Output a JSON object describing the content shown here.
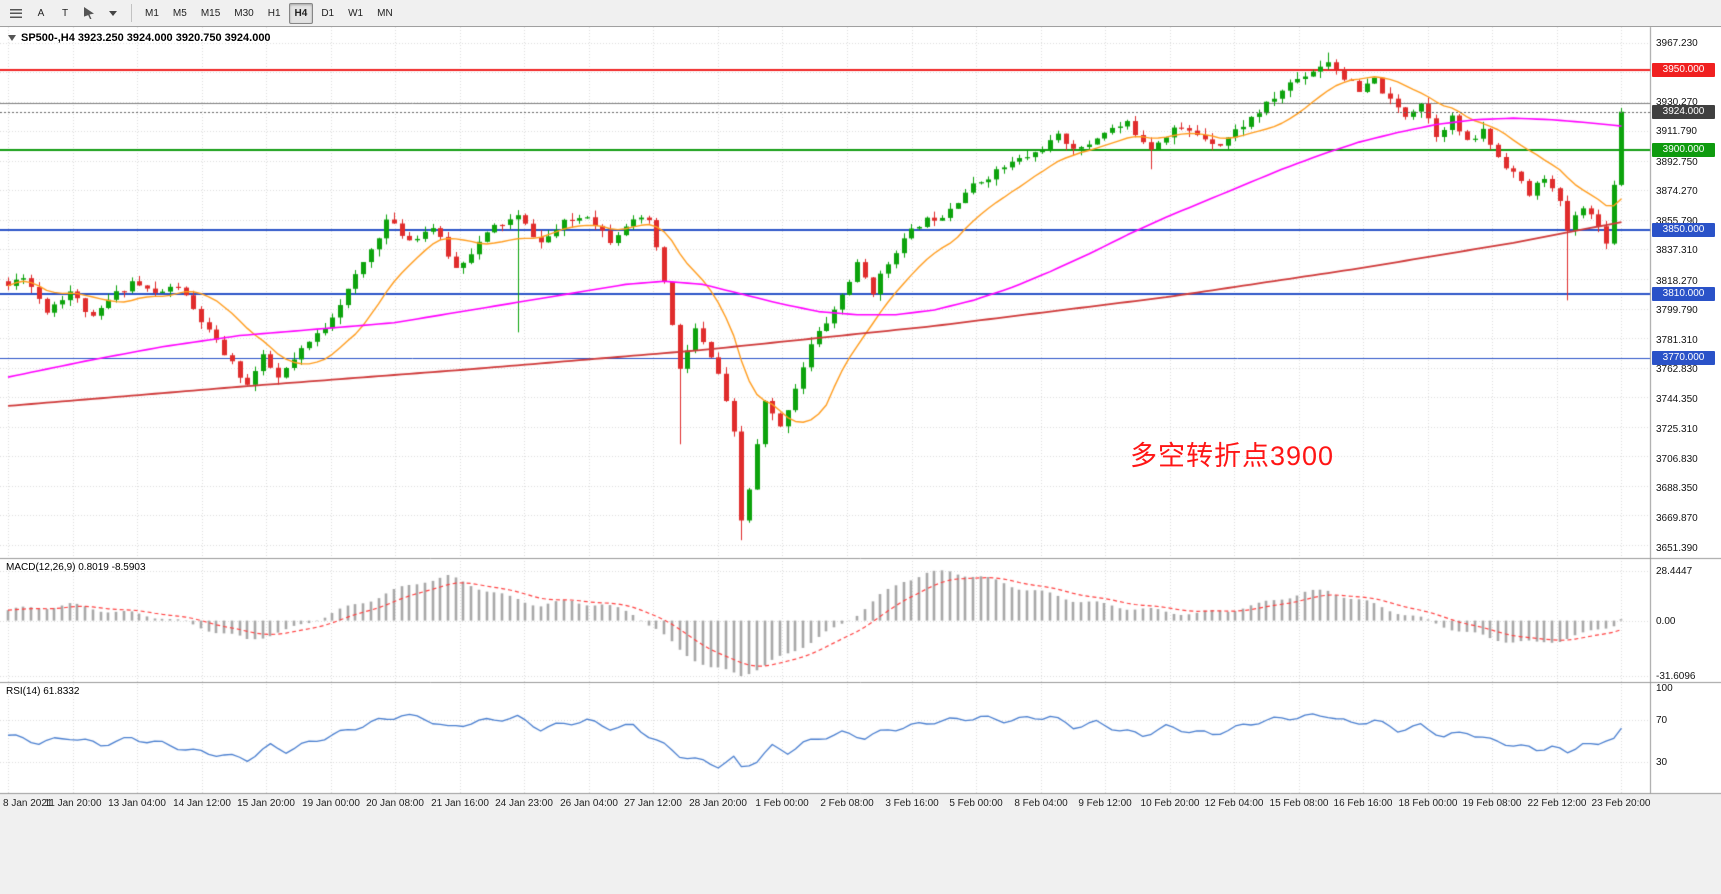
{
  "toolbar": {
    "tool_a": "A",
    "tool_t": "T",
    "timeframes": [
      "M1",
      "M5",
      "M15",
      "M30",
      "H1",
      "H4",
      "D1",
      "W1",
      "MN"
    ],
    "active_timeframe": "H4"
  },
  "chart_header": {
    "symbol_line": "SP500-,H4  3923.250 3924.000 3920.750 3924.000"
  },
  "annotation": {
    "text": "多空转折点3900",
    "color": "#ff1515"
  },
  "panels": {
    "macd": {
      "title": "MACD(12,26,9) 0.8019 -8.5903",
      "scale_labels": [
        "28.4447",
        "0.00",
        "-31.6096"
      ]
    },
    "rsi": {
      "title": "RSI(14) 61.8332",
      "scale_labels": [
        "100",
        "70",
        "30"
      ]
    }
  },
  "price_scale": {
    "current_price": "3924.000",
    "ticks": [
      "3967.230",
      "3930.270",
      "3911.790",
      "3892.750",
      "3874.270",
      "3855.790",
      "3837.310",
      "3818.270",
      "3799.790",
      "3781.310",
      "3762.830",
      "3744.350",
      "3725.310",
      "3706.830",
      "3688.350",
      "3669.870",
      "3651.390"
    ]
  },
  "time_scale": {
    "labels": [
      "8 Jan 2021",
      "11 Jan 20:00",
      "13 Jan 04:00",
      "14 Jan 12:00",
      "15 Jan 20:00",
      "19 Jan 00:00",
      "20 Jan 08:00",
      "21 Jan 16:00",
      "24 Jan 23:00",
      "26 Jan 04:00",
      "27 Jan 12:00",
      "28 Jan 20:00",
      "1 Feb 00:00",
      "2 Feb 08:00",
      "3 Feb 16:00",
      "5 Feb 00:00",
      "8 Feb 04:00",
      "9 Feb 12:00",
      "10 Feb 20:00",
      "12 Feb 04:00",
      "15 Feb 08:00",
      "16 Feb 16:00",
      "18 Feb 00:00",
      "19 Feb 08:00",
      "22 Feb 12:00",
      "23 Feb 20:00"
    ]
  },
  "chart_data": {
    "type": "candlestick",
    "symbol": "SP500-",
    "timeframe": "H4",
    "ohlc_current": {
      "open": 3923.25,
      "high": 3924.0,
      "low": 3920.75,
      "close": 3924.0
    },
    "bars": 210,
    "price_range": [
      3645.5,
      3977.0
    ],
    "colors": {
      "bull": "#0ca30c",
      "bear": "#e02c2c",
      "grid": "#dcdcdc",
      "ma_fast": "#ff9d1e",
      "ma_mid": "#ff00ff",
      "ma_slow": "#cf3a3a",
      "macd_hist": "#a8a8a8",
      "macd_signal": "#ff4242",
      "rsi_line": "#4a7fd0"
    },
    "candles": {
      "seed": 11,
      "noise": 5,
      "wick": 4.5,
      "last_close": 3924.0,
      "waypoints": [
        [
          0,
          3815
        ],
        [
          2,
          3822
        ],
        [
          5,
          3800
        ],
        [
          8,
          3812
        ],
        [
          11,
          3794
        ],
        [
          13,
          3806
        ],
        [
          16,
          3818
        ],
        [
          19,
          3810
        ],
        [
          22,
          3815
        ],
        [
          24,
          3800
        ],
        [
          26,
          3786
        ],
        [
          29,
          3766
        ],
        [
          31,
          3753
        ],
        [
          33,
          3770
        ],
        [
          35,
          3757
        ],
        [
          38,
          3774
        ],
        [
          41,
          3790
        ],
        [
          44,
          3812
        ],
        [
          47,
          3838
        ],
        [
          49,
          3856
        ],
        [
          52,
          3844
        ],
        [
          55,
          3852
        ],
        [
          58,
          3826
        ],
        [
          61,
          3842
        ],
        [
          63,
          3852
        ],
        [
          66,
          3858
        ],
        [
          69,
          3842
        ],
        [
          72,
          3854
        ],
        [
          75,
          3860
        ],
        [
          78,
          3844
        ],
        [
          80,
          3854
        ],
        [
          83,
          3856
        ],
        [
          85,
          3818
        ],
        [
          87,
          3762
        ],
        [
          89,
          3788
        ],
        [
          92,
          3760
        ],
        [
          94,
          3722
        ],
        [
          95,
          3668
        ],
        [
          96,
          3688
        ],
        [
          98,
          3742
        ],
        [
          100,
          3726
        ],
        [
          102,
          3752
        ],
        [
          104,
          3778
        ],
        [
          107,
          3800
        ],
        [
          110,
          3828
        ],
        [
          112,
          3812
        ],
        [
          115,
          3838
        ],
        [
          118,
          3854
        ],
        [
          121,
          3860
        ],
        [
          124,
          3874
        ],
        [
          127,
          3884
        ],
        [
          130,
          3892
        ],
        [
          133,
          3898
        ],
        [
          136,
          3908
        ],
        [
          139,
          3900
        ],
        [
          142,
          3912
        ],
        [
          145,
          3916
        ],
        [
          148,
          3902
        ],
        [
          151,
          3914
        ],
        [
          154,
          3910
        ],
        [
          157,
          3904
        ],
        [
          160,
          3916
        ],
        [
          163,
          3928
        ],
        [
          166,
          3942
        ],
        [
          169,
          3950
        ],
        [
          171,
          3956
        ],
        [
          173,
          3946
        ],
        [
          175,
          3936
        ],
        [
          177,
          3944
        ],
        [
          179,
          3930
        ],
        [
          181,
          3922
        ],
        [
          183,
          3930
        ],
        [
          185,
          3910
        ],
        [
          187,
          3920
        ],
        [
          189,
          3904
        ],
        [
          191,
          3912
        ],
        [
          193,
          3896
        ],
        [
          195,
          3886
        ],
        [
          197,
          3872
        ],
        [
          199,
          3884
        ],
        [
          201,
          3866
        ],
        [
          202,
          3850
        ],
        [
          204,
          3866
        ],
        [
          206,
          3852
        ],
        [
          207,
          3844
        ],
        [
          208,
          3878
        ],
        [
          209,
          3924
        ]
      ],
      "special_wicks": [
        {
          "bar": 66,
          "low": 3786
        },
        {
          "bar": 87,
          "low": 3716
        },
        {
          "bar": 95,
          "low": 3656
        },
        {
          "bar": 148,
          "low": 3888
        },
        {
          "bar": 171,
          "high": 3961
        },
        {
          "bar": 202,
          "low": 3806
        }
      ]
    },
    "moving_averages": [
      {
        "name": "fast-ma-orange",
        "period": 12,
        "source": "sma_of_closes"
      },
      {
        "name": "mid-ma-magenta",
        "waypoints": [
          [
            0,
            3758
          ],
          [
            10,
            3768
          ],
          [
            20,
            3777
          ],
          [
            30,
            3784
          ],
          [
            40,
            3788
          ],
          [
            50,
            3792
          ],
          [
            60,
            3800
          ],
          [
            70,
            3808
          ],
          [
            80,
            3816
          ],
          [
            85,
            3818
          ],
          [
            90,
            3816
          ],
          [
            95,
            3810
          ],
          [
            100,
            3804
          ],
          [
            105,
            3799
          ],
          [
            110,
            3797
          ],
          [
            115,
            3797
          ],
          [
            120,
            3800
          ],
          [
            125,
            3806
          ],
          [
            130,
            3814
          ],
          [
            135,
            3824
          ],
          [
            140,
            3835
          ],
          [
            145,
            3847
          ],
          [
            150,
            3858
          ],
          [
            155,
            3868
          ],
          [
            160,
            3878
          ],
          [
            165,
            3888
          ],
          [
            170,
            3897
          ],
          [
            175,
            3905
          ],
          [
            180,
            3911
          ],
          [
            185,
            3916
          ],
          [
            190,
            3919
          ],
          [
            195,
            3920
          ],
          [
            200,
            3919
          ],
          [
            205,
            3917
          ],
          [
            209,
            3915
          ]
        ]
      },
      {
        "name": "slow-ma-red",
        "waypoints": [
          [
            0,
            3740
          ],
          [
            30,
            3752
          ],
          [
            60,
            3763
          ],
          [
            90,
            3775
          ],
          [
            120,
            3790
          ],
          [
            150,
            3808
          ],
          [
            175,
            3826
          ],
          [
            195,
            3842
          ],
          [
            209,
            3855
          ]
        ]
      }
    ],
    "horizontal_lines": [
      {
        "value": 3950.0,
        "label": "3950.000",
        "color": "#f02020",
        "width": 2
      },
      {
        "value": 3929.5,
        "label": null,
        "color": "#808080",
        "width": 1
      },
      {
        "value": 3900.0,
        "label": "3900.000",
        "color": "#0f9b0f",
        "width": 2
      },
      {
        "value": 3850.0,
        "label": "3850.000",
        "color": "#2a52c8",
        "width": 2
      },
      {
        "value": 3810.0,
        "label": "3810.000",
        "color": "#2a52c8",
        "width": 2
      },
      {
        "value": 3770.0,
        "label": "3770.000",
        "color": "#2a52c8",
        "width": 1
      }
    ],
    "current_price": {
      "value": 3924.0,
      "label": "3924.000"
    },
    "macd": {
      "range": [
        -34.6,
        35.3
      ],
      "main_value": 0.8019,
      "signal_value": -8.5903,
      "wiggle": 1.3,
      "grid_levels": [
        28.4447,
        0,
        -31.6096
      ],
      "waypoints": [
        [
          0,
          6
        ],
        [
          8,
          9
        ],
        [
          14,
          5
        ],
        [
          20,
          2
        ],
        [
          26,
          -5
        ],
        [
          31,
          -11
        ],
        [
          36,
          -6
        ],
        [
          40,
          1
        ],
        [
          45,
          9
        ],
        [
          50,
          17
        ],
        [
          54,
          23
        ],
        [
          57,
          25
        ],
        [
          61,
          19
        ],
        [
          65,
          13
        ],
        [
          69,
          9
        ],
        [
          73,
          11
        ],
        [
          77,
          9
        ],
        [
          81,
          4
        ],
        [
          84,
          -5
        ],
        [
          87,
          -17
        ],
        [
          91,
          -27
        ],
        [
          95,
          -31
        ],
        [
          98,
          -26
        ],
        [
          101,
          -19
        ],
        [
          104,
          -12
        ],
        [
          107,
          -5
        ],
        [
          110,
          4
        ],
        [
          113,
          14
        ],
        [
          116,
          23
        ],
        [
          119,
          27
        ],
        [
          122,
          28
        ],
        [
          126,
          25
        ],
        [
          130,
          20
        ],
        [
          134,
          16
        ],
        [
          138,
          12
        ],
        [
          142,
          9
        ],
        [
          146,
          7
        ],
        [
          150,
          5
        ],
        [
          154,
          4
        ],
        [
          158,
          6
        ],
        [
          162,
          9
        ],
        [
          165,
          13
        ],
        [
          168,
          16
        ],
        [
          171,
          17
        ],
        [
          174,
          13
        ],
        [
          177,
          9
        ],
        [
          180,
          5
        ],
        [
          183,
          1
        ],
        [
          186,
          -3
        ],
        [
          189,
          -7
        ],
        [
          192,
          -10
        ],
        [
          195,
          -12
        ],
        [
          198,
          -13
        ],
        [
          201,
          -11
        ],
        [
          204,
          -8
        ],
        [
          206,
          -5
        ],
        [
          208,
          -2
        ],
        [
          209,
          0.8
        ]
      ]
    },
    "rsi": {
      "range": [
        0,
        104.8
      ],
      "value": 61.8332,
      "wiggle": 2.2,
      "levels": [
        70,
        30
      ],
      "waypoints": [
        [
          0,
          55
        ],
        [
          4,
          48
        ],
        [
          8,
          53
        ],
        [
          12,
          46
        ],
        [
          16,
          52
        ],
        [
          20,
          47
        ],
        [
          24,
          40
        ],
        [
          28,
          36
        ],
        [
          31,
          32
        ],
        [
          34,
          45
        ],
        [
          36,
          40
        ],
        [
          39,
          48
        ],
        [
          42,
          55
        ],
        [
          45,
          62
        ],
        [
          48,
          69
        ],
        [
          51,
          74
        ],
        [
          54,
          71
        ],
        [
          57,
          62
        ],
        [
          60,
          67
        ],
        [
          63,
          70
        ],
        [
          66,
          72
        ],
        [
          69,
          61
        ],
        [
          72,
          66
        ],
        [
          75,
          69
        ],
        [
          78,
          62
        ],
        [
          81,
          64
        ],
        [
          84,
          50
        ],
        [
          87,
          36
        ],
        [
          90,
          30
        ],
        [
          92,
          26
        ],
        [
          94,
          33
        ],
        [
          95,
          24
        ],
        [
          97,
          31
        ],
        [
          99,
          44
        ],
        [
          101,
          39
        ],
        [
          103,
          47
        ],
        [
          105,
          52
        ],
        [
          108,
          57
        ],
        [
          111,
          53
        ],
        [
          114,
          60
        ],
        [
          117,
          64
        ],
        [
          120,
          68
        ],
        [
          123,
          70
        ],
        [
          126,
          72
        ],
        [
          129,
          69
        ],
        [
          132,
          71
        ],
        [
          135,
          73
        ],
        [
          138,
          63
        ],
        [
          141,
          67
        ],
        [
          144,
          60
        ],
        [
          147,
          55
        ],
        [
          150,
          63
        ],
        [
          153,
          59
        ],
        [
          156,
          56
        ],
        [
          159,
          62
        ],
        [
          162,
          68
        ],
        [
          165,
          71
        ],
        [
          168,
          73
        ],
        [
          171,
          74
        ],
        [
          174,
          66
        ],
        [
          177,
          69
        ],
        [
          180,
          60
        ],
        [
          183,
          64
        ],
        [
          186,
          54
        ],
        [
          189,
          58
        ],
        [
          192,
          50
        ],
        [
          195,
          46
        ],
        [
          198,
          41
        ],
        [
          200,
          45
        ],
        [
          202,
          37
        ],
        [
          204,
          49
        ],
        [
          206,
          44
        ],
        [
          208,
          54
        ],
        [
          209,
          62
        ]
      ]
    }
  }
}
